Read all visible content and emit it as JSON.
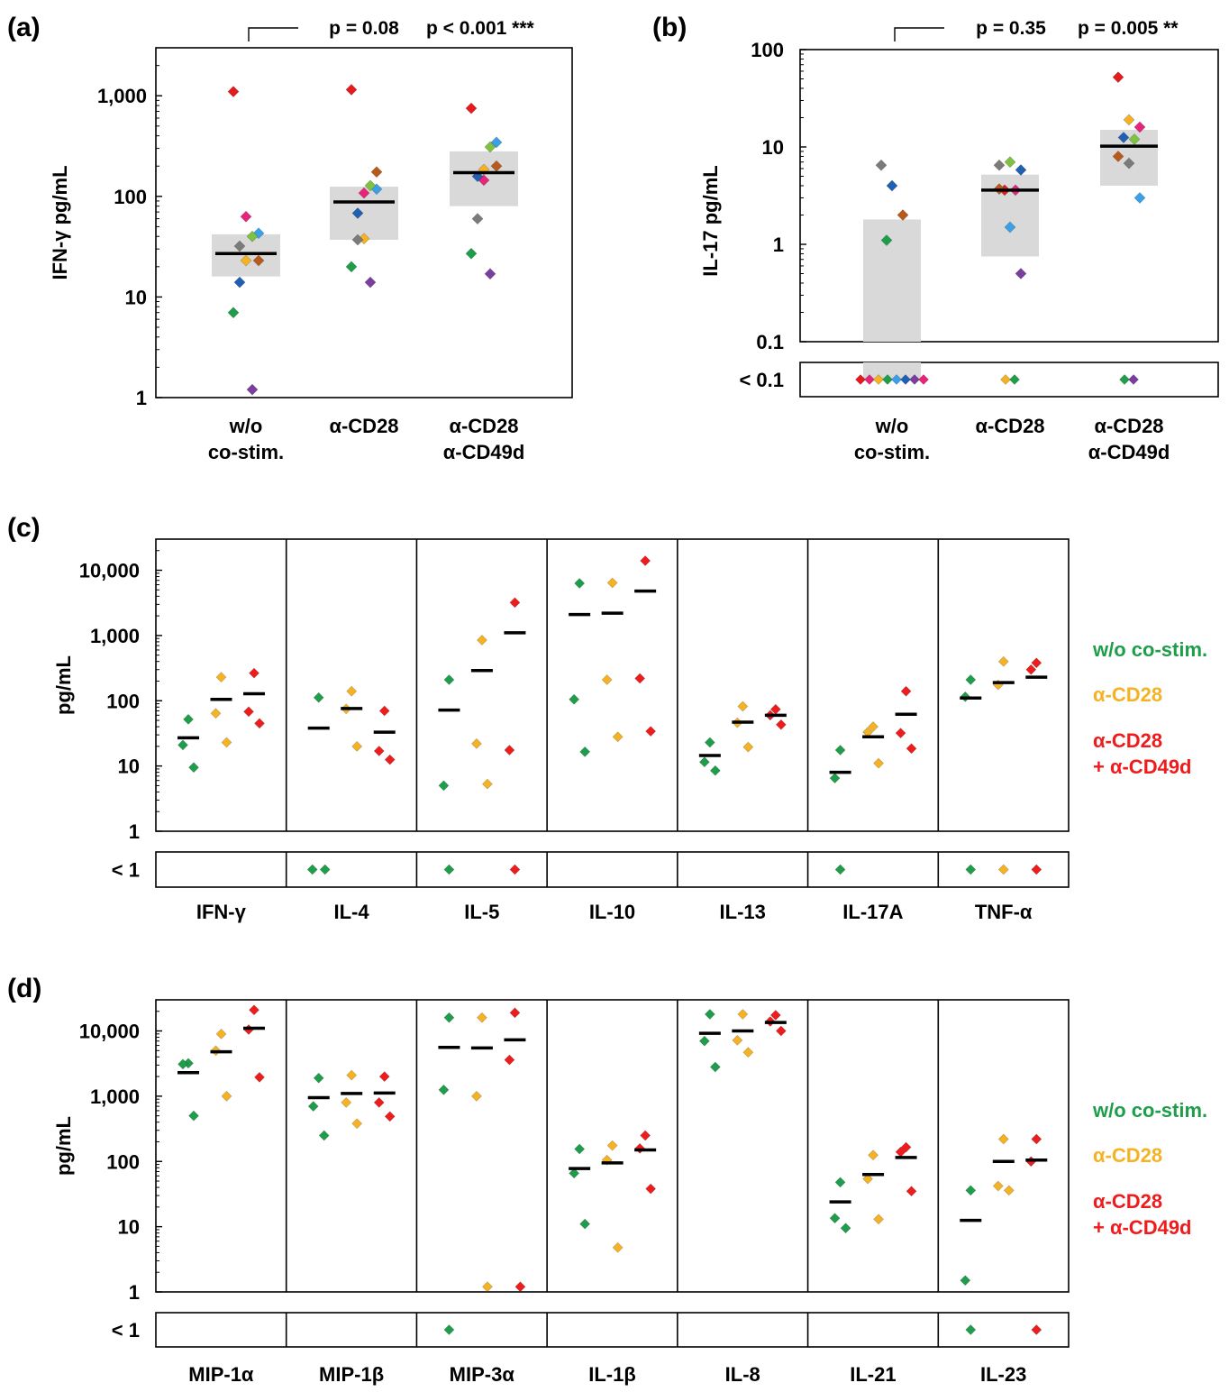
{
  "colors": {
    "wo": "#1e9e4a",
    "cd28": "#f5b324",
    "cd49": "#ee1c1c",
    "box": "#d9d9d9",
    "dots": [
      "#e41a1c",
      "#e8237a",
      "#3aa0e8",
      "#1f5fb4",
      "#7fc241",
      "#1e9e4a",
      "#f5b324",
      "#b85a1a",
      "#7b7b7b",
      "#7a3ea0"
    ]
  },
  "chart_data": [
    {
      "panel": "(a)",
      "type": "scatter",
      "ylabel": "IFN-γ pg/mL",
      "scale": "log",
      "ylim": [
        1,
        3000
      ],
      "ticks": [
        1,
        10,
        100,
        1000
      ],
      "tick_labels": [
        "1",
        "10",
        "100",
        "1,000"
      ],
      "categories": [
        [
          "w/o",
          "co-stim."
        ],
        [
          "α-CD28"
        ],
        [
          "α-CD28",
          "α-CD49d"
        ]
      ],
      "groups": [
        {
          "median": 27,
          "box": [
            16,
            42
          ],
          "points": [
            [
              1100,
              0
            ],
            [
              63,
              1
            ],
            [
              43,
              2
            ],
            [
              14,
              3
            ],
            [
              40,
              4
            ],
            [
              7,
              5
            ],
            [
              23,
              6
            ],
            [
              23,
              7
            ],
            [
              32,
              8
            ],
            [
              1.2,
              9
            ]
          ]
        },
        {
          "median": 88,
          "box": [
            37,
            125
          ],
          "points": [
            [
              1150,
              0
            ],
            [
              108,
              1
            ],
            [
              118,
              2
            ],
            [
              68,
              3
            ],
            [
              128,
              4
            ],
            [
              20,
              5
            ],
            [
              38,
              6
            ],
            [
              175,
              7
            ],
            [
              37,
              8
            ],
            [
              14,
              9
            ]
          ]
        },
        {
          "median": 172,
          "box": [
            80,
            280
          ],
          "points": [
            [
              750,
              0
            ],
            [
              145,
              1
            ],
            [
              345,
              2
            ],
            [
              158,
              3
            ],
            [
              310,
              4
            ],
            [
              27,
              5
            ],
            [
              185,
              6
            ],
            [
              200,
              7
            ],
            [
              60,
              8
            ],
            [
              17,
              9
            ]
          ]
        }
      ],
      "annotations": [
        "p = 0.08",
        "p < 0.001 ***"
      ]
    },
    {
      "panel": "(b)",
      "type": "scatter",
      "ylabel": "IL-17 pg/mL",
      "scale": "log",
      "ylim": [
        0.1,
        100
      ],
      "ticks": [
        0.1,
        1,
        10,
        100
      ],
      "tick_labels": [
        "0.1",
        "1",
        "10",
        "100"
      ],
      "below_label": "< 0.1",
      "categories": [
        [
          "w/o",
          "co-stim."
        ],
        [
          "α-CD28"
        ],
        [
          "α-CD28",
          "α-CD49d"
        ]
      ],
      "groups": [
        {
          "median": null,
          "box": [
            0.1,
            1.8
          ],
          "points": [
            [
              6.5,
              8
            ],
            [
              4,
              3
            ],
            [
              2,
              7
            ],
            [
              1.1,
              5
            ]
          ],
          "below": [
            0,
            1,
            6,
            5,
            2,
            3,
            9,
            1
          ]
        },
        {
          "median": 3.6,
          "box": [
            0.75,
            5.2
          ],
          "points": [
            [
              6.5,
              8
            ],
            [
              7,
              4
            ],
            [
              5.8,
              3
            ],
            [
              3.6,
              0
            ],
            [
              3.6,
              1
            ],
            [
              3.7,
              7
            ],
            [
              1.5,
              2
            ],
            [
              0.5,
              9
            ]
          ],
          "below": [
            6,
            5
          ]
        },
        {
          "median": 10.2,
          "box": [
            4,
            15
          ],
          "points": [
            [
              52,
              0
            ],
            [
              19,
              6
            ],
            [
              16,
              1
            ],
            [
              12.5,
              3
            ],
            [
              12,
              4
            ],
            [
              8,
              7
            ],
            [
              6.8,
              8
            ],
            [
              3,
              2
            ]
          ],
          "below": [
            5,
            9
          ]
        }
      ],
      "annotations": [
        "p = 0.35",
        "p = 0.005 **"
      ]
    },
    {
      "panel": "(c)",
      "type": "scatter",
      "ylabel": "pg/mL",
      "scale": "log",
      "ylim": [
        1,
        30000
      ],
      "ticks": [
        1,
        10,
        100,
        1000,
        10000
      ],
      "tick_labels": [
        "1",
        "10",
        "100",
        "1,000",
        "10,000"
      ],
      "below_label": "< 1",
      "legend": [
        "w/o co-stim.",
        "α-CD28",
        "α-CD28",
        "+ α-CD49d"
      ],
      "cytokines": [
        {
          "name": "IFN-γ",
          "wo": {
            "m": 27,
            "p": [
              52,
              21,
              9.5
            ],
            "b": 0
          },
          "cd28": {
            "m": 105,
            "p": [
              230,
              64,
              23
            ],
            "b": 0
          },
          "cd49": {
            "m": 128,
            "p": [
              265,
              68,
              45
            ],
            "b": 0
          }
        },
        {
          "name": "IL-4",
          "wo": {
            "m": 38,
            "p": [
              112
            ],
            "b": 2
          },
          "cd28": {
            "m": 76,
            "p": [
              140,
              75,
              20
            ],
            "b": 0
          },
          "cd49": {
            "m": 33,
            "p": [
              70,
              17,
              12.5
            ],
            "b": 0
          }
        },
        {
          "name": "IL-5",
          "wo": {
            "m": 72,
            "p": [
              210,
              5
            ],
            "b": 1
          },
          "cd28": {
            "m": 290,
            "p": [
              850,
              22,
              5.3
            ],
            "b": 0
          },
          "cd49": {
            "m": 1100,
            "p": [
              3200,
              17.5
            ],
            "b": 1
          }
        },
        {
          "name": "IL-10",
          "wo": {
            "m": 2100,
            "p": [
              6300,
              105,
              16.5
            ],
            "b": 0
          },
          "cd28": {
            "m": 2200,
            "p": [
              6400,
              210,
              28
            ],
            "b": 0
          },
          "cd49": {
            "m": 4800,
            "p": [
              14000,
              220,
              34
            ],
            "b": 0
          }
        },
        {
          "name": "IL-13",
          "wo": {
            "m": 14.5,
            "p": [
              23,
              11.5,
              8.5
            ],
            "b": 0
          },
          "cd28": {
            "m": 47,
            "p": [
              82,
              46,
              19.5
            ],
            "b": 0
          },
          "cd49": {
            "m": 60,
            "p": [
              74,
              60,
              43
            ],
            "b": 0
          }
        },
        {
          "name": "IL-17A",
          "wo": {
            "m": 8,
            "p": [
              17.5,
              6.5
            ],
            "b": 1
          },
          "cd28": {
            "m": 28,
            "p": [
              40,
              33,
              11
            ],
            "b": 0
          },
          "cd49": {
            "m": 62,
            "p": [
              140,
              32,
              18.5
            ],
            "b": 0
          }
        },
        {
          "name": "TNF-α",
          "wo": {
            "m": 110,
            "p": [
              210,
              115
            ],
            "b": 1
          },
          "cd28": {
            "m": 190,
            "p": [
              400,
              175
            ],
            "b": 1
          },
          "cd49": {
            "m": 230,
            "p": [
              380,
              300
            ],
            "b": 1
          }
        }
      ]
    },
    {
      "panel": "(d)",
      "type": "scatter",
      "ylabel": "pg/mL",
      "scale": "log",
      "ylim": [
        1,
        30000
      ],
      "ticks": [
        1,
        10,
        100,
        1000,
        10000
      ],
      "tick_labels": [
        "1",
        "10",
        "100",
        "1,000",
        "10,000"
      ],
      "below_label": "< 1",
      "legend": [
        "w/o co-stim.",
        "α-CD28",
        "α-CD28",
        "+ α-CD49d"
      ],
      "cytokines": [
        {
          "name": "MIP-1α",
          "wo": {
            "m": 2300,
            "p": [
              3200,
              3100,
              500
            ],
            "b": 0
          },
          "cd28": {
            "m": 4800,
            "p": [
              9000,
              5000,
              1000
            ],
            "b": 0
          },
          "cd49": {
            "m": 11000,
            "p": [
              21000,
              10500,
              1950
            ],
            "b": 0
          }
        },
        {
          "name": "MIP-1β",
          "wo": {
            "m": 950,
            "p": [
              1900,
              700,
              250
            ],
            "b": 0
          },
          "cd28": {
            "m": 1100,
            "p": [
              2100,
              800,
              380
            ],
            "b": 0
          },
          "cd49": {
            "m": 1120,
            "p": [
              2000,
              800,
              490
            ],
            "b": 0
          }
        },
        {
          "name": "MIP-3α",
          "wo": {
            "m": 5600,
            "p": [
              16000,
              1250
            ],
            "b": 1
          },
          "cd28": {
            "m": 5500,
            "p": [
              16000,
              1000,
              1.2
            ],
            "b": 0
          },
          "cd49": {
            "m": 7300,
            "p": [
              19000,
              3600,
              1.2
            ],
            "b": 0
          }
        },
        {
          "name": "IL-1β",
          "wo": {
            "m": 78,
            "p": [
              155,
              66,
              11
            ],
            "b": 0
          },
          "cd28": {
            "m": 95,
            "p": [
              175,
              105,
              4.8
            ],
            "b": 0
          },
          "cd49": {
            "m": 150,
            "p": [
              250,
              158,
              38
            ],
            "b": 0
          }
        },
        {
          "name": "IL-8",
          "wo": {
            "m": 9200,
            "p": [
              18000,
              7000,
              2800
            ],
            "b": 0
          },
          "cd28": {
            "m": 10000,
            "p": [
              18000,
              7200,
              4700
            ],
            "b": 0
          },
          "cd49": {
            "m": 13500,
            "p": [
              17500,
              14000,
              10000
            ],
            "b": 0
          }
        },
        {
          "name": "IL-21",
          "wo": {
            "m": 24,
            "p": [
              48,
              13.5,
              9.5
            ],
            "b": 0
          },
          "cd28": {
            "m": 63,
            "p": [
              125,
              54,
              13
            ],
            "b": 0
          },
          "cd49": {
            "m": 115,
            "p": [
              165,
              140,
              35
            ],
            "b": 0
          }
        },
        {
          "name": "IL-23",
          "wo": {
            "m": 12.5,
            "p": [
              36,
              1.5
            ],
            "b": 1
          },
          "cd28": {
            "m": 100,
            "p": [
              220,
              42,
              36
            ],
            "b": 0
          },
          "cd49": {
            "m": 105,
            "p": [
              220,
              100
            ],
            "b": 1
          }
        }
      ]
    }
  ]
}
